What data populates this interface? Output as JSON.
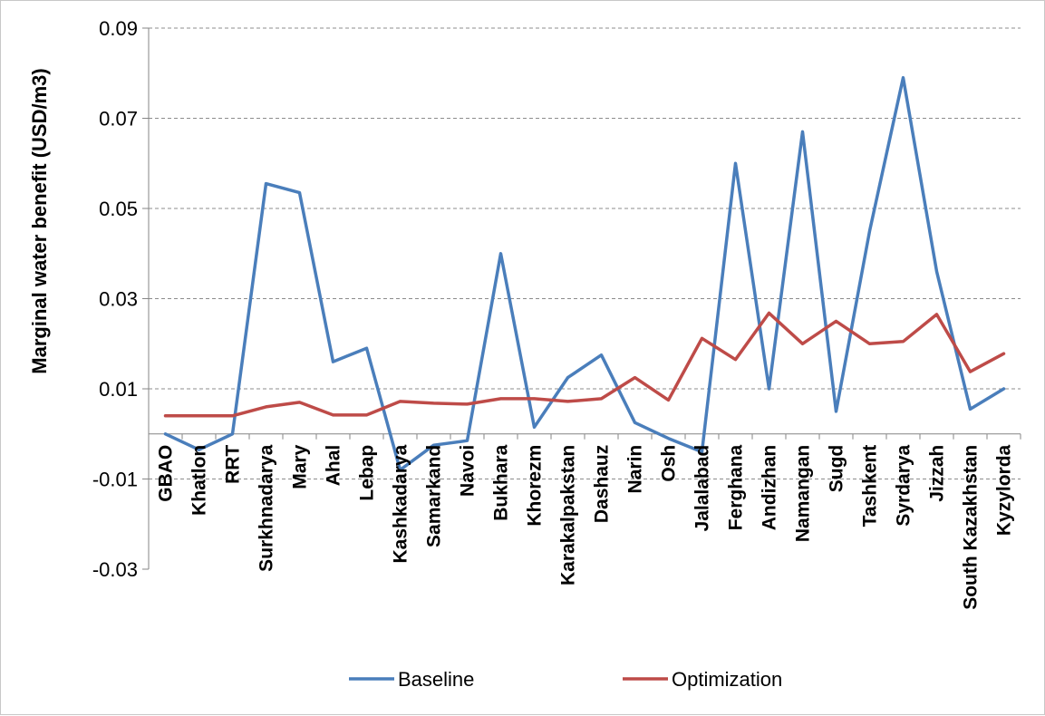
{
  "chart_data": {
    "type": "line",
    "title": "",
    "xlabel": "",
    "ylabel": "Marginal water benefit (USD/m3)",
    "ylim": [
      -0.03,
      0.09
    ],
    "y_ticks": [
      "0.09",
      "0.07",
      "0.05",
      "0.03",
      "0.01",
      "-0.01",
      "-0.03"
    ],
    "y_tick_values": [
      0.09,
      0.07,
      0.05,
      0.03,
      0.01,
      -0.01,
      -0.03
    ],
    "grid": "horizontal dashed",
    "legend_position": "bottom",
    "categories": [
      "GBAO",
      "Khatlon",
      "RRT",
      "Surkhnadarya",
      "Mary",
      "Ahal",
      "Lebap",
      "Kashkadarya",
      "Samarkand",
      "Navoi",
      "Bukhara",
      "Khorezm",
      "Karakalpakstan",
      "Dashauz",
      "Narin",
      "Osh",
      "Jalalabad",
      "Ferghana",
      "Andizhan",
      "Namangan",
      "Sugd",
      "Tashkent",
      "Syrdarya",
      "Jizzah",
      "South Kazakhstan",
      "Kyzylorda"
    ],
    "series": [
      {
        "name": "Baseline",
        "color": "#4a7ebb",
        "values": [
          0.0,
          -0.0035,
          0.0,
          0.0555,
          0.0535,
          0.016,
          0.019,
          -0.008,
          -0.0025,
          -0.0015,
          0.04,
          0.0015,
          0.0125,
          0.0175,
          0.0025,
          -0.001,
          -0.004,
          0.06,
          0.01,
          0.067,
          0.005,
          0.045,
          0.079,
          0.036,
          0.0055,
          0.01
        ]
      },
      {
        "name": "Optimization",
        "color": "#be4b48",
        "values": [
          0.004,
          0.004,
          0.004,
          0.006,
          0.007,
          0.0042,
          0.0042,
          0.0072,
          0.0068,
          0.0066,
          0.0078,
          0.0078,
          0.0072,
          0.0078,
          0.0125,
          0.0075,
          0.0212,
          0.0165,
          0.0268,
          0.02,
          0.025,
          0.02,
          0.0205,
          0.0265,
          0.0138,
          0.0178
        ]
      }
    ]
  }
}
